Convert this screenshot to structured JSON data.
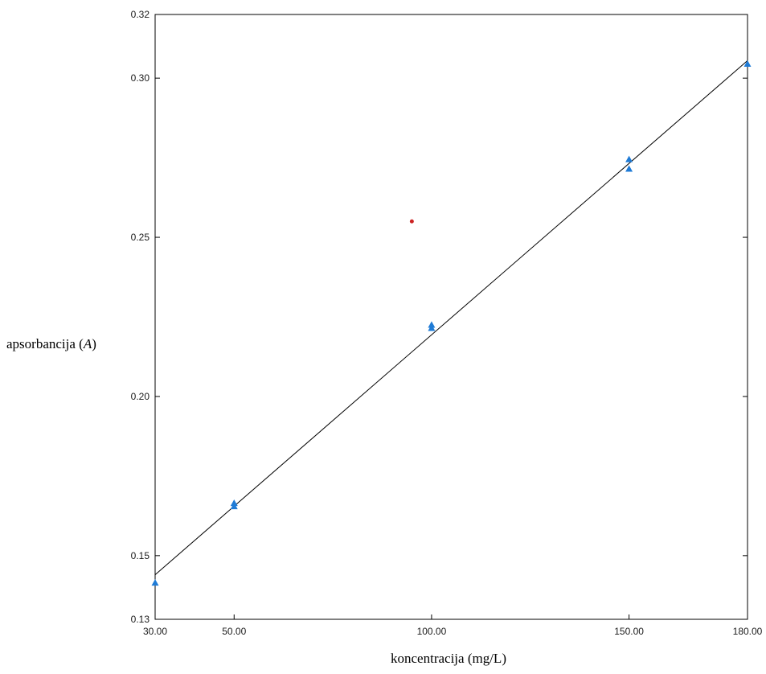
{
  "chart_data": {
    "type": "scatter",
    "xlabel": "koncentracija (mg/L)",
    "ylabel_prefix": "apsorbancija (",
    "ylabel_symbol": "A",
    "ylabel_suffix": ")",
    "xlim": [
      30,
      180
    ],
    "ylim": [
      0.13,
      0.32
    ],
    "x_ticks": [
      30,
      50,
      100,
      150,
      180
    ],
    "x_tick_labels": [
      "30.00",
      "50.00",
      "100.00",
      "150.00",
      "180.00"
    ],
    "y_ticks": [
      0.13,
      0.15,
      0.2,
      0.25,
      0.3,
      0.32
    ],
    "y_tick_labels": [
      "0.13",
      "0.15",
      "0.20",
      "0.25",
      "0.30",
      "0.32"
    ],
    "grid": false,
    "series": [
      {
        "marker": "triangle",
        "color": "#1f7bd6",
        "x": [
          30,
          50,
          50,
          100,
          100,
          150,
          150,
          180
        ],
        "y": [
          0.1415,
          0.1665,
          0.1655,
          0.2225,
          0.2215,
          0.2745,
          0.2715,
          0.3045
        ]
      },
      {
        "marker": "dot",
        "color": "#cc2222",
        "x": [
          95
        ],
        "y": [
          0.255
        ]
      }
    ],
    "regression_line": {
      "color": "#000000",
      "x": [
        30,
        180
      ],
      "y": [
        0.144,
        0.3055
      ]
    }
  }
}
